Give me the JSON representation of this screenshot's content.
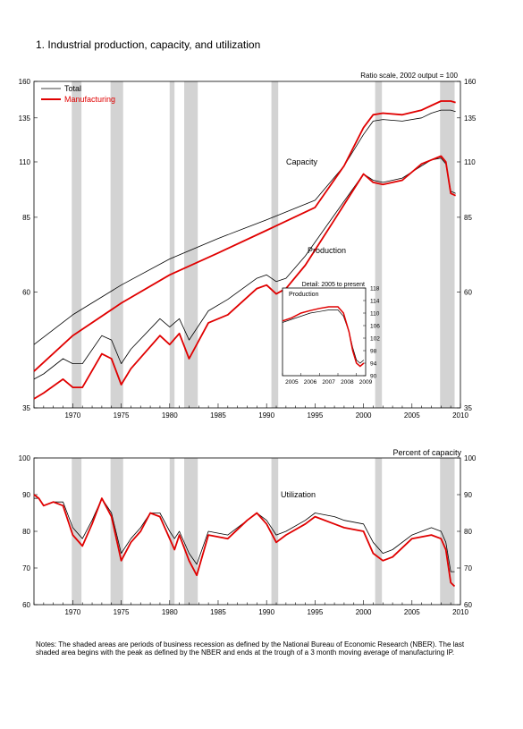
{
  "figure_title": "1.  Industrial production, capacity, and utilization",
  "notes": "Notes: The shaded areas are periods of business recession as defined by the National Bureau of Economic Research (NBER). The last shaded area begins with the peak as defined by the NBER and ends at the trough of a 3 month moving average of manufacturing IP.",
  "colors": {
    "total": "#000000",
    "manufacturing": "#e00000",
    "recession": "#d3d3d3"
  },
  "chart_data": [
    {
      "type": "line",
      "title": "",
      "scale_note": "Ratio scale, 2002 output = 100",
      "y_scale": "log",
      "ylim": [
        35,
        160
      ],
      "y_ticks": [
        35,
        60,
        85,
        110,
        135,
        160
      ],
      "xlim": [
        1966.0,
        2010.0
      ],
      "x_ticks": [
        1970,
        1975,
        1980,
        1985,
        1990,
        1995,
        2000,
        2005,
        2010
      ],
      "legend": [
        "Total",
        "Manufacturing"
      ],
      "legend_position": "top-left",
      "labels": {
        "capacity": "Capacity",
        "production": "Production"
      },
      "recessions": [
        [
          1969.9,
          1970.9
        ],
        [
          1973.9,
          1975.2
        ],
        [
          1980.0,
          1980.5
        ],
        [
          1981.5,
          1982.9
        ],
        [
          1990.5,
          1991.2
        ],
        [
          2001.2,
          2001.9
        ],
        [
          2007.9,
          2009.4
        ]
      ],
      "series": [
        {
          "name": "Total",
          "role": "capacity",
          "x": [
            1966,
            1970,
            1975,
            1980,
            1985,
            1990,
            1995,
            1998,
            2000,
            2001,
            2002,
            2004,
            2006,
            2007,
            2008,
            2009,
            2009.5
          ],
          "y": [
            47,
            54,
            62,
            70,
            77,
            84,
            92,
            108,
            125,
            133,
            134,
            133,
            135,
            138,
            140,
            140,
            139
          ]
        },
        {
          "name": "Manufacturing",
          "role": "capacity",
          "x": [
            1966,
            1970,
            1975,
            1980,
            1985,
            1990,
            1995,
            1998,
            2000,
            2001,
            2002,
            2004,
            2006,
            2007,
            2008,
            2009,
            2009.5
          ],
          "y": [
            41.5,
            49,
            57,
            65,
            72,
            80,
            89,
            108,
            129,
            137,
            138,
            137,
            140,
            143,
            146,
            146,
            145
          ]
        },
        {
          "name": "Total",
          "role": "production",
          "x": [
            1966,
            1967,
            1969,
            1970,
            1971,
            1973,
            1974,
            1975,
            1976,
            1979,
            1980,
            1981,
            1982,
            1984,
            1986,
            1989,
            1990,
            1991,
            1992,
            1994,
            1997,
            2000,
            2001,
            2002,
            2004,
            2006,
            2007,
            2008,
            2008.5,
            2009,
            2009.5
          ],
          "y": [
            40,
            41,
            44,
            43,
            43,
            49,
            48,
            43,
            46,
            53,
            51,
            53,
            48,
            55,
            58,
            64,
            65,
            63,
            64,
            71,
            86,
            104,
            101,
            100,
            102,
            108,
            111,
            112,
            109,
            96,
            95
          ]
        },
        {
          "name": "Manufacturing",
          "role": "production",
          "x": [
            1966,
            1967,
            1969,
            1970,
            1971,
            1973,
            1974,
            1975,
            1976,
            1979,
            1980,
            1981,
            1982,
            1984,
            1986,
            1989,
            1990,
            1991,
            1992,
            1994,
            1997,
            2000,
            2001,
            2002,
            2004,
            2006,
            2007,
            2008,
            2008.5,
            2009,
            2009.5
          ],
          "y": [
            36.5,
            37.5,
            40,
            38.5,
            38.5,
            45,
            44,
            39,
            42,
            49,
            47,
            49.5,
            44,
            52,
            54,
            61,
            62,
            59.5,
            61,
            68,
            84,
            104,
            100,
            99,
            101,
            109,
            111,
            113,
            110,
            95,
            94
          ]
        }
      ]
    },
    {
      "type": "line",
      "title": "Detail: 2005 to present",
      "label": "Production",
      "xlim": [
        2005.0,
        2009.5
      ],
      "ylim": [
        90,
        118
      ],
      "y_ticks": [
        90,
        94,
        98,
        102,
        106,
        110,
        114,
        118
      ],
      "x_ticks": [
        2005,
        2006,
        2007,
        2008,
        2009
      ],
      "series": [
        {
          "name": "Total",
          "x": [
            2005,
            2005.5,
            2006,
            2006.5,
            2007,
            2007.5,
            2008,
            2008.3,
            2008.6,
            2008.8,
            2009,
            2009.2,
            2009.4
          ],
          "y": [
            107,
            108,
            109,
            110,
            110.5,
            111,
            111,
            109,
            104,
            99,
            95,
            94,
            95
          ]
        },
        {
          "name": "Manufacturing",
          "x": [
            2005,
            2005.5,
            2006,
            2006.5,
            2007,
            2007.5,
            2008,
            2008.3,
            2008.6,
            2008.8,
            2009,
            2009.2,
            2009.4
          ],
          "y": [
            107.5,
            108.5,
            110,
            110.8,
            111.5,
            112,
            112,
            110,
            104,
            98,
            94,
            93,
            94
          ]
        }
      ]
    },
    {
      "type": "line",
      "title": "",
      "scale_note": "Percent of capacity",
      "label": "Utilization",
      "ylim": [
        60,
        100
      ],
      "y_ticks": [
        60,
        70,
        80,
        90,
        100
      ],
      "xlim": [
        1966.0,
        2010.0
      ],
      "x_ticks": [
        1970,
        1975,
        1980,
        1985,
        1990,
        1995,
        2000,
        2005,
        2010
      ],
      "recessions": [
        [
          1969.9,
          1970.9
        ],
        [
          1973.9,
          1975.2
        ],
        [
          1980.0,
          1980.5
        ],
        [
          1981.5,
          1982.9
        ],
        [
          1990.5,
          1991.2
        ],
        [
          2001.2,
          2001.9
        ],
        [
          2007.9,
          2009.4
        ]
      ],
      "series": [
        {
          "name": "Total",
          "x": [
            1966,
            1966.5,
            1967,
            1968,
            1969,
            1970,
            1971,
            1972,
            1973,
            1974,
            1975,
            1976,
            1977,
            1978,
            1979,
            1980,
            1980.5,
            1981,
            1982,
            1982.8,
            1984,
            1986,
            1988,
            1989,
            1990,
            1991,
            1992,
            1994,
            1995,
            1997,
            1998,
            2000,
            2001,
            2002,
            2003,
            2005,
            2007,
            2008,
            2008.5,
            2009,
            2009.4
          ],
          "y": [
            89,
            89,
            87,
            88,
            88,
            81,
            78,
            83,
            89,
            85,
            74,
            78,
            81,
            85,
            85,
            80,
            78,
            80,
            74,
            71,
            80,
            79,
            83,
            85,
            83,
            79,
            80,
            83,
            85,
            84,
            83,
            82,
            77,
            74,
            75,
            79,
            81,
            80,
            77,
            69,
            69
          ]
        },
        {
          "name": "Manufacturing",
          "x": [
            1966,
            1966.5,
            1967,
            1968,
            1969,
            1970,
            1971,
            1972,
            1973,
            1974,
            1975,
            1976,
            1977,
            1978,
            1979,
            1980,
            1980.5,
            1981,
            1982,
            1982.8,
            1984,
            1986,
            1988,
            1989,
            1990,
            1991,
            1992,
            1994,
            1995,
            1997,
            1998,
            2000,
            2001,
            2002,
            2003,
            2005,
            2007,
            2008,
            2008.5,
            2009,
            2009.4
          ],
          "y": [
            90,
            89,
            87,
            88,
            87,
            79,
            76,
            82,
            89,
            84,
            72,
            77,
            80,
            85,
            84,
            78,
            75,
            79,
            72,
            68,
            79,
            78,
            83,
            85,
            82,
            77,
            79,
            82,
            84,
            82,
            81,
            80,
            74,
            72,
            73,
            78,
            79,
            78,
            75,
            66,
            65
          ]
        }
      ]
    }
  ]
}
